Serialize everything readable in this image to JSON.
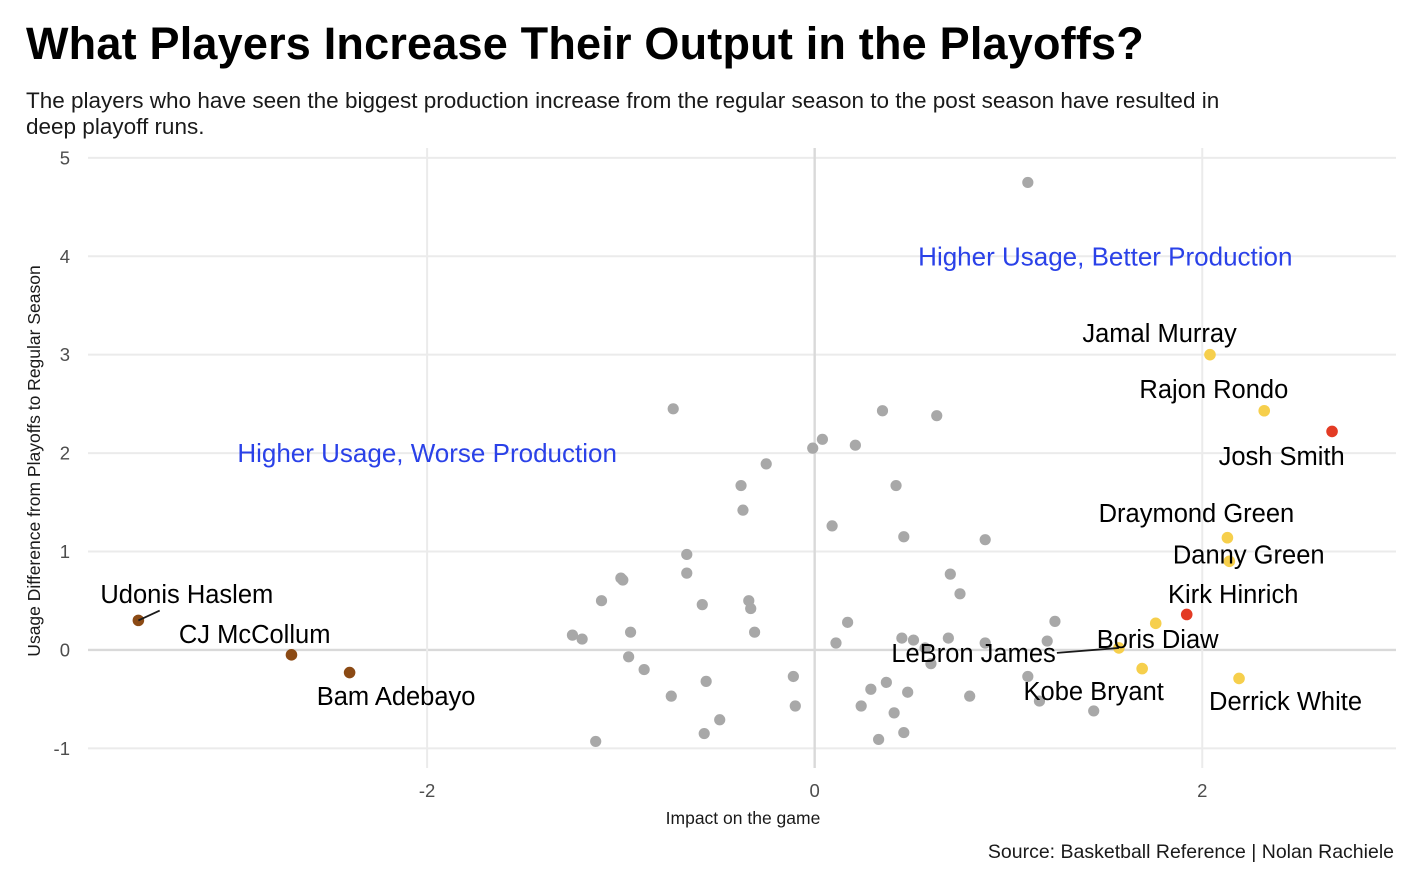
{
  "title": "What Players Increase Their Output in the Playoffs?",
  "subtitle": "The players who have seen the biggest production increase from the regular season to the post season have resulted in deep playoff runs.",
  "caption": "Source: Basketball Reference | Nolan Rachiele",
  "chart_data": {
    "type": "scatter",
    "xlabel": "Impact on the game",
    "ylabel": "Usage Difference from Playoffs to Regular Season",
    "xlim": [
      -3.75,
      3.0
    ],
    "ylim": [
      -1.2,
      5.1
    ],
    "x_ticks": [
      -2,
      0,
      2
    ],
    "x_tick_labels": [
      "-2",
      "0",
      "2"
    ],
    "y_ticks": [
      -1,
      0,
      1,
      2,
      3,
      4,
      5
    ],
    "y_tick_labels": [
      "-1",
      "0",
      "1",
      "2",
      "3",
      "4",
      "5"
    ],
    "grid": true,
    "legend": "none",
    "colors": {
      "other": "#a8a8a8",
      "top": "#f6cf4c",
      "red": "#e33b24",
      "bottom": "#8b4a14",
      "quadrant_label": "#2a41e8",
      "grid": "#ebebeb",
      "zero_line": "#d9d9d9"
    },
    "quadrant_labels": [
      {
        "text": "Higher Usage, Better Production",
        "x": 1.5,
        "y": 4.0
      },
      {
        "text": "Higher Usage, Worse Production",
        "x": -2.0,
        "y": 2.0
      }
    ],
    "labeled_players": [
      {
        "name": "Jamal Murray",
        "x": 2.04,
        "y": 3.0,
        "group": "top",
        "label_x": 1.78,
        "label_y": 3.22
      },
      {
        "name": "Rajon Rondo",
        "x": 2.32,
        "y": 2.43,
        "group": "top",
        "label_x": 2.06,
        "label_y": 2.65
      },
      {
        "name": "Josh Smith",
        "x": 2.67,
        "y": 2.22,
        "group": "red",
        "label_x": 2.41,
        "label_y": 1.97
      },
      {
        "name": "Draymond Green",
        "x": 2.13,
        "y": 1.14,
        "group": "top",
        "label_x": 1.97,
        "label_y": 1.39
      },
      {
        "name": "Danny Green",
        "x": 2.14,
        "y": 0.9,
        "group": "top",
        "label_x": 2.24,
        "label_y": 0.97
      },
      {
        "name": "Kirk Hinrich",
        "x": 1.92,
        "y": 0.36,
        "group": "red",
        "label_x": 2.16,
        "label_y": 0.57
      },
      {
        "name": "Boris Diaw",
        "x": 1.76,
        "y": 0.27,
        "group": "top",
        "label_x": 1.77,
        "label_y": 0.11
      },
      {
        "name": "LeBron James",
        "x": 1.57,
        "y": 0.02,
        "group": "top",
        "label_x": 0.82,
        "label_y": -0.03
      },
      {
        "name": "Kobe Bryant",
        "x": 1.69,
        "y": -0.19,
        "group": "top",
        "label_x": 1.44,
        "label_y": -0.42
      },
      {
        "name": "Derrick White",
        "x": 2.19,
        "y": -0.29,
        "group": "top",
        "label_x": 2.43,
        "label_y": -0.52
      },
      {
        "name": "Udonis Haslem",
        "x": -3.49,
        "y": 0.3,
        "group": "bottom",
        "label_x": -3.24,
        "label_y": 0.57
      },
      {
        "name": "CJ McCollum",
        "x": -2.7,
        "y": -0.05,
        "group": "bottom",
        "label_x": -2.89,
        "label_y": 0.16
      },
      {
        "name": "Bam Adebayo",
        "x": -2.4,
        "y": -0.23,
        "group": "bottom",
        "label_x": -2.16,
        "label_y": -0.47
      }
    ],
    "other_points": [
      [
        1.1,
        4.75
      ],
      [
        -0.73,
        2.45
      ],
      [
        0.35,
        2.43
      ],
      [
        0.63,
        2.38
      ],
      [
        0.04,
        2.14
      ],
      [
        0.21,
        2.08
      ],
      [
        -0.01,
        2.05
      ],
      [
        -0.25,
        1.89
      ],
      [
        -0.38,
        1.67
      ],
      [
        0.42,
        1.67
      ],
      [
        -0.37,
        1.42
      ],
      [
        0.09,
        1.26
      ],
      [
        0.46,
        1.15
      ],
      [
        0.88,
        1.12
      ],
      [
        -0.66,
        0.97
      ],
      [
        -1.0,
        0.73
      ],
      [
        -0.99,
        0.71
      ],
      [
        -0.66,
        0.78
      ],
      [
        0.7,
        0.77
      ],
      [
        0.75,
        0.57
      ],
      [
        -1.1,
        0.5
      ],
      [
        -0.34,
        0.5
      ],
      [
        -0.58,
        0.46
      ],
      [
        -0.33,
        0.42
      ],
      [
        0.17,
        0.28
      ],
      [
        1.24,
        0.29
      ],
      [
        -0.95,
        0.18
      ],
      [
        -0.31,
        0.18
      ],
      [
        -1.25,
        0.15
      ],
      [
        -1.2,
        0.11
      ],
      [
        0.45,
        0.12
      ],
      [
        0.51,
        0.1
      ],
      [
        0.69,
        0.12
      ],
      [
        0.11,
        0.07
      ],
      [
        0.57,
        0.02
      ],
      [
        0.88,
        0.07
      ],
      [
        1.2,
        0.09
      ],
      [
        -0.96,
        -0.07
      ],
      [
        0.6,
        -0.14
      ],
      [
        -0.88,
        -0.2
      ],
      [
        -0.11,
        -0.27
      ],
      [
        1.1,
        -0.27
      ],
      [
        -0.56,
        -0.32
      ],
      [
        0.37,
        -0.33
      ],
      [
        0.29,
        -0.4
      ],
      [
        0.48,
        -0.43
      ],
      [
        -0.74,
        -0.47
      ],
      [
        0.8,
        -0.47
      ],
      [
        1.16,
        -0.52
      ],
      [
        -0.1,
        -0.57
      ],
      [
        0.24,
        -0.57
      ],
      [
        0.41,
        -0.64
      ],
      [
        1.44,
        -0.62
      ],
      [
        -0.49,
        -0.71
      ],
      [
        -0.57,
        -0.85
      ],
      [
        0.46,
        -0.84
      ],
      [
        0.33,
        -0.91
      ],
      [
        -1.13,
        -0.93
      ]
    ]
  }
}
